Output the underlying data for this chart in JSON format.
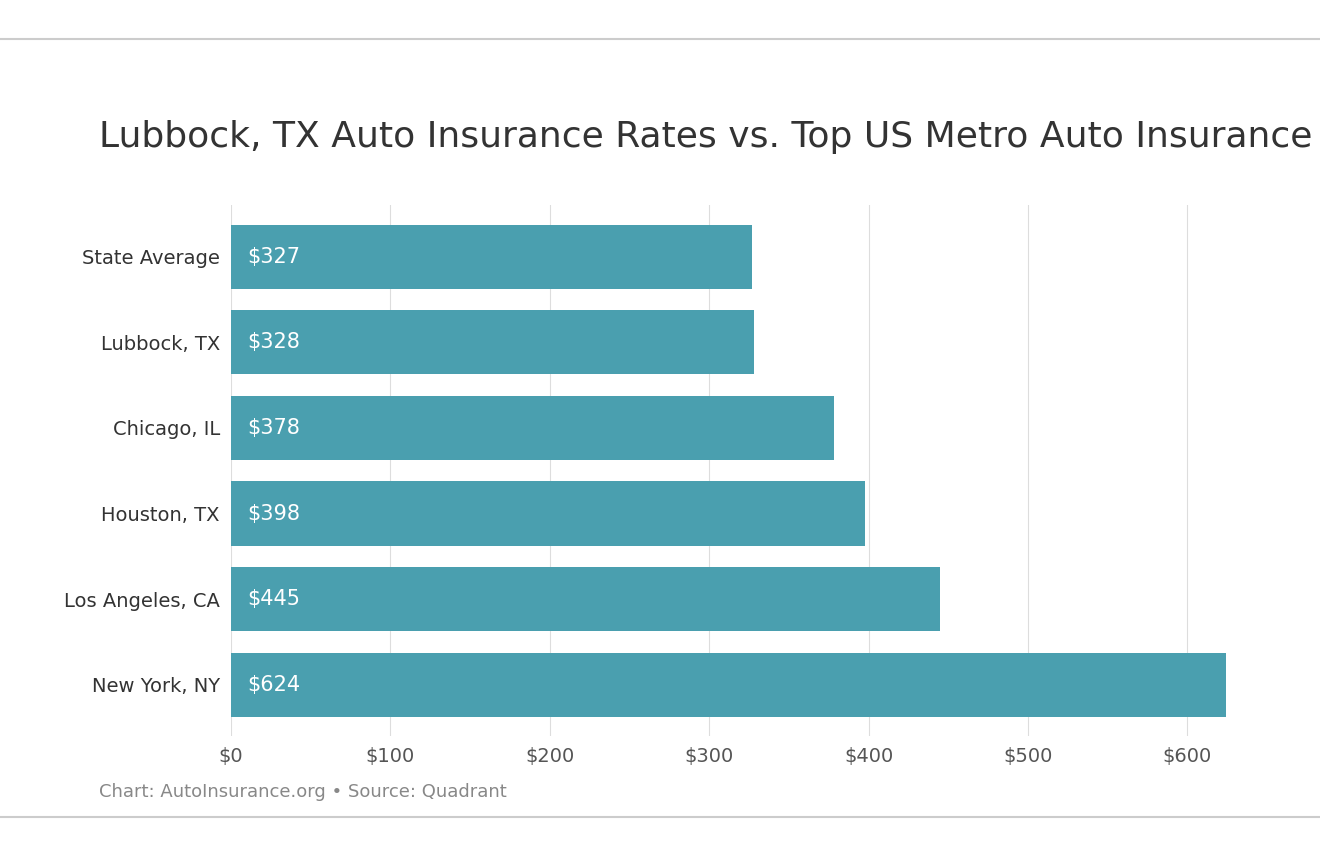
{
  "title": "Lubbock, TX Auto Insurance Rates vs. Top US Metro Auto Insurance Rates",
  "categories": [
    "State Average",
    "Lubbock, TX",
    "Chicago, IL",
    "Houston, TX",
    "Los Angeles, CA",
    "New York, NY"
  ],
  "values": [
    327,
    328,
    378,
    398,
    445,
    624
  ],
  "labels": [
    "$327",
    "$328",
    "$378",
    "$398",
    "$445",
    "$624"
  ],
  "bar_color": "#4a9faf",
  "background_color": "#ffffff",
  "label_color": "#ffffff",
  "title_color": "#333333",
  "axis_tick_color": "#555555",
  "grid_color": "#dddddd",
  "footer_text": "Chart: AutoInsurance.org • Source: Quadrant",
  "footer_color": "#888888",
  "xlim": [
    0,
    650
  ],
  "xticks": [
    0,
    100,
    200,
    300,
    400,
    500,
    600
  ],
  "xtick_labels": [
    "$0",
    "$100",
    "$200",
    "$300",
    "$400",
    "$500",
    "$600"
  ],
  "title_fontsize": 26,
  "label_fontsize": 15,
  "tick_fontsize": 14,
  "footer_fontsize": 13,
  "bar_height": 0.75,
  "border_color": "#cccccc"
}
